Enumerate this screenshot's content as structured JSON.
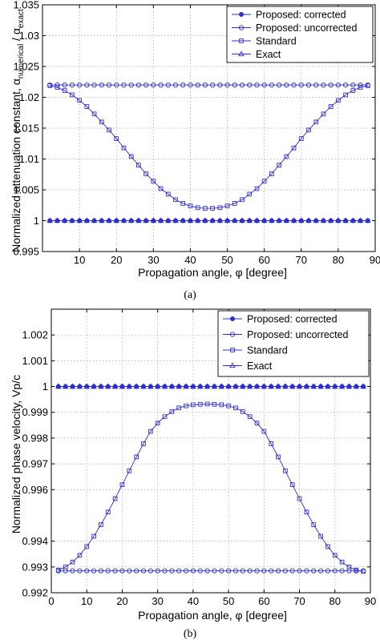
{
  "colors": {
    "series": "#2f2fd0",
    "axis": "#000000",
    "grid": "#a8a8a8"
  },
  "chart_data": [
    {
      "type": "line",
      "caption": "(a)",
      "xlabel": "Propagation angle, φ [degree]",
      "ylabel": "Normalized attenuation constant, αnumerical / αexact",
      "xlim": [
        0,
        90
      ],
      "ylim": [
        0.995,
        1.035
      ],
      "xticks": [
        10,
        20,
        30,
        40,
        50,
        60,
        70,
        80,
        90
      ],
      "yticks": [
        0.995,
        1,
        1.005,
        1.01,
        1.015,
        1.02,
        1.025,
        1.03,
        1.035
      ],
      "ytick_labels": [
        "0.995",
        "1",
        "1.005",
        "1.01",
        "1.015",
        "1.02",
        "1.025",
        "1.03",
        "1.035"
      ],
      "grid": true,
      "legend_position": "top-right",
      "x": [
        2,
        4,
        6,
        8,
        10,
        12,
        14,
        16,
        18,
        20,
        22,
        24,
        26,
        28,
        30,
        32,
        34,
        36,
        38,
        40,
        42,
        44,
        46,
        48,
        50,
        52,
        54,
        56,
        58,
        60,
        62,
        64,
        66,
        68,
        70,
        72,
        74,
        76,
        78,
        80,
        82,
        84,
        86,
        88
      ],
      "series": [
        {
          "name": "Proposed: corrected",
          "marker": "dot",
          "values": [
            1,
            1,
            1,
            1,
            1,
            1,
            1,
            1,
            1,
            1,
            1,
            1,
            1,
            1,
            1,
            1,
            1,
            1,
            1,
            1,
            1,
            1,
            1,
            1,
            1,
            1,
            1,
            1,
            1,
            1,
            1,
            1,
            1,
            1,
            1,
            1,
            1,
            1,
            1,
            1,
            1,
            1,
            1,
            1
          ]
        },
        {
          "name": "Proposed: uncorrected",
          "marker": "circle",
          "values": [
            1.022,
            1.022,
            1.022,
            1.022,
            1.022,
            1.022,
            1.022,
            1.022,
            1.022,
            1.022,
            1.022,
            1.022,
            1.022,
            1.022,
            1.022,
            1.022,
            1.022,
            1.022,
            1.022,
            1.022,
            1.022,
            1.022,
            1.022,
            1.022,
            1.022,
            1.022,
            1.022,
            1.022,
            1.022,
            1.022,
            1.022,
            1.022,
            1.022,
            1.022,
            1.022,
            1.022,
            1.022,
            1.022,
            1.022,
            1.022,
            1.022,
            1.022,
            1.022,
            1.022
          ]
        },
        {
          "name": "Standard",
          "marker": "square",
          "values": [
            1.0219,
            1.0216,
            1.0211,
            1.0204,
            1.0195,
            1.0185,
            1.0173,
            1.016,
            1.0147,
            1.0133,
            1.0118,
            1.0104,
            1.009,
            1.0076,
            1.0064,
            1.0052,
            1.0043,
            1.0034,
            1.0028,
            1.0024,
            1.0021,
            1.002,
            1.002,
            1.0021,
            1.0024,
            1.0028,
            1.0034,
            1.0043,
            1.0052,
            1.0064,
            1.0076,
            1.009,
            1.0104,
            1.0118,
            1.0133,
            1.0147,
            1.016,
            1.0173,
            1.0185,
            1.0195,
            1.0204,
            1.0211,
            1.0216,
            1.0219
          ]
        },
        {
          "name": "Exact",
          "marker": "triangle",
          "values": [
            1,
            1,
            1,
            1,
            1,
            1,
            1,
            1,
            1,
            1,
            1,
            1,
            1,
            1,
            1,
            1,
            1,
            1,
            1,
            1,
            1,
            1,
            1,
            1,
            1,
            1,
            1,
            1,
            1,
            1,
            1,
            1,
            1,
            1,
            1,
            1,
            1,
            1,
            1,
            1,
            1,
            1,
            1,
            1
          ]
        }
      ]
    },
    {
      "type": "line",
      "caption": "(b)",
      "xlabel": "Propagation angle, φ [degree]",
      "ylabel": "Normalized phase velocity, Vp/c",
      "xlim": [
        0,
        90
      ],
      "ylim": [
        0.992,
        1.003
      ],
      "xticks": [
        0,
        10,
        20,
        30,
        40,
        50,
        60,
        70,
        80,
        90
      ],
      "yticks": [
        0.992,
        0.993,
        0.994,
        0.996,
        0.997,
        0.998,
        0.999,
        1,
        1.001,
        1.002
      ],
      "ytick_labels": [
        "0.992",
        "0.993",
        "0.994",
        "0.996",
        "0.997",
        "0.998",
        "0.999",
        "1",
        "1.001",
        "1.002"
      ],
      "grid": true,
      "legend_position": "top-right",
      "x": [
        2,
        4,
        6,
        8,
        10,
        12,
        14,
        16,
        18,
        20,
        22,
        24,
        26,
        28,
        30,
        32,
        34,
        36,
        38,
        40,
        42,
        44,
        46,
        48,
        50,
        52,
        54,
        56,
        58,
        60,
        62,
        64,
        66,
        68,
        70,
        72,
        74,
        76,
        78,
        80,
        82,
        84,
        86,
        88
      ],
      "series": [
        {
          "name": "Proposed: corrected",
          "marker": "dot",
          "values": [
            1,
            1,
            1,
            1,
            1,
            1,
            1,
            1,
            1,
            1,
            1,
            1,
            1,
            1,
            1,
            1,
            1,
            1,
            1,
            1,
            1,
            1,
            1,
            1,
            1,
            1,
            1,
            1,
            1,
            1,
            1,
            1,
            1,
            1,
            1,
            1,
            1,
            1,
            1,
            1,
            1,
            1,
            1,
            1
          ]
        },
        {
          "name": "Proposed: uncorrected",
          "marker": "circle",
          "values": [
            0.99285,
            0.99285,
            0.99285,
            0.99285,
            0.99285,
            0.99285,
            0.99285,
            0.99285,
            0.99285,
            0.99285,
            0.99285,
            0.99285,
            0.99285,
            0.99285,
            0.99285,
            0.99285,
            0.99285,
            0.99285,
            0.99285,
            0.99285,
            0.99285,
            0.99285,
            0.99285,
            0.99285,
            0.99285,
            0.99285,
            0.99285,
            0.99285,
            0.99285,
            0.99285,
            0.99285,
            0.99285,
            0.99285,
            0.99285,
            0.99285,
            0.99285,
            0.99285,
            0.99285,
            0.99285,
            0.99285,
            0.99285,
            0.99285,
            0.99285,
            0.99285
          ]
        },
        {
          "name": "Standard",
          "marker": "square",
          "values": [
            0.99288,
            0.993,
            0.99319,
            0.99345,
            0.99379,
            0.99419,
            0.99464,
            0.99513,
            0.99565,
            0.99619,
            0.99673,
            0.99727,
            0.99778,
            0.99826,
            0.99858,
            0.99883,
            0.99903,
            0.99917,
            0.99925,
            0.99929,
            0.99931,
            0.99932,
            0.99931,
            0.99929,
            0.99925,
            0.99917,
            0.99903,
            0.99883,
            0.99858,
            0.99826,
            0.99778,
            0.99727,
            0.99673,
            0.99619,
            0.99565,
            0.99513,
            0.99464,
            0.99419,
            0.99379,
            0.99345,
            0.99319,
            0.993,
            0.99288,
            0.99283
          ]
        },
        {
          "name": "Exact",
          "marker": "triangle",
          "values": [
            1,
            1,
            1,
            1,
            1,
            1,
            1,
            1,
            1,
            1,
            1,
            1,
            1,
            1,
            1,
            1,
            1,
            1,
            1,
            1,
            1,
            1,
            1,
            1,
            1,
            1,
            1,
            1,
            1,
            1,
            1,
            1,
            1,
            1,
            1,
            1,
            1,
            1,
            1,
            1,
            1,
            1,
            1,
            1
          ]
        }
      ]
    }
  ]
}
